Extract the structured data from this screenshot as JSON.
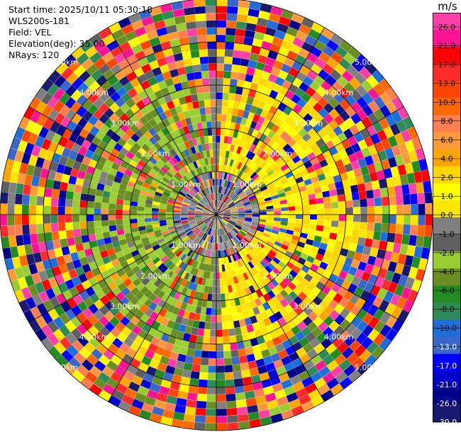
{
  "info": {
    "start_time": "Start time: 2025/10/11 05:30:18",
    "site": "WLS200s-181",
    "field": "Field: VEL",
    "elevation": "Elevation(deg): 35.00",
    "nrays": "NRays: 120"
  },
  "chart_data": {
    "type": "heatmap",
    "projection": "polar",
    "field": "VEL",
    "units": "m/s",
    "nrays": 120,
    "elevation_deg": 35.0,
    "range_rings_km": [
      1,
      2,
      3,
      4,
      5
    ],
    "range_ring_labels": [
      "1.00km",
      "2.00km",
      "3.00km",
      "4.00km",
      "5.00km"
    ],
    "max_range_km": 5.0,
    "colorbar": {
      "label": "m/s",
      "ticks": [
        "26.0",
        "21.0",
        "17.0",
        "13.0",
        "10.0",
        "8.0",
        "6.0",
        "4.0",
        "2.0",
        "1.0",
        "0.0",
        "-1.0",
        "-2.0",
        "-4.0",
        "-6.0",
        "-8.0",
        "-10.0",
        "-13.0",
        "-17.0",
        "-21.0",
        "-26.0",
        "-30.0"
      ],
      "colors": [
        "#ff3fa8",
        "#ff1493",
        "#ff0000",
        "#ff2a2a",
        "#ff4500",
        "#ff6a00",
        "#ff7f50",
        "#ff9a3c",
        "#ffa500",
        "#ffd700",
        "#ffff00",
        "#ffe600",
        "#808080",
        "#606060",
        "#9acd32",
        "#6b8e23",
        "#228b22",
        "#2e8b57",
        "#1e6fd9",
        "#3a66c8",
        "#0000ff",
        "#0000cd",
        "#00008b",
        "#191970"
      ],
      "vmin": -30,
      "vmax": 30
    }
  }
}
